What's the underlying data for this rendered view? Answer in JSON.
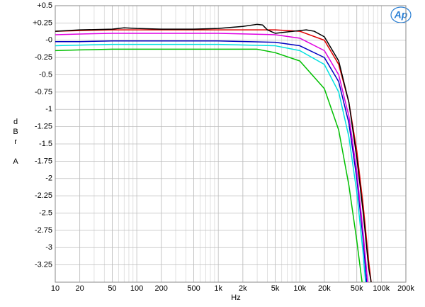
{
  "chart_data": {
    "type": "line",
    "xlabel": "Hz",
    "ylabel_lines": [
      "dBr",
      "A"
    ],
    "logo": "Ap",
    "xscale": "log",
    "grid": true,
    "minor_grid": true,
    "xlim": [
      10,
      200000
    ],
    "ylim": [
      -3.5,
      0.5
    ],
    "xticks": [
      10,
      20,
      50,
      100,
      200,
      500,
      {
        "value": 1000,
        "label": "1k"
      },
      {
        "value": 2000,
        "label": "2k"
      },
      {
        "value": 5000,
        "label": "5k"
      },
      {
        "value": 10000,
        "label": "10k"
      },
      {
        "value": 20000,
        "label": "20k"
      },
      {
        "value": 50000,
        "label": "50k"
      },
      {
        "value": 100000,
        "label": "100k"
      },
      {
        "value": 200000,
        "label": "200k"
      }
    ],
    "yticks": [
      {
        "value": 0.5,
        "label": "+0.5"
      },
      {
        "value": 0.25,
        "label": "+0.25"
      },
      {
        "value": 0,
        "label": "-0"
      },
      -0.25,
      -0.5,
      -0.75,
      -1,
      -1.25,
      -1.5,
      -1.75,
      -2,
      -2.25,
      -2.5,
      -2.75,
      -3,
      -3.25
    ],
    "series": [
      {
        "color": "#00c000",
        "x": [
          10,
          20,
          50,
          100,
          1000,
          3000,
          5000,
          10000,
          20000,
          30000,
          40000,
          50000,
          58000
        ],
        "values": [
          -0.15,
          -0.14,
          -0.13,
          -0.13,
          -0.13,
          -0.13,
          -0.18,
          -0.3,
          -0.7,
          -1.3,
          -2.1,
          -2.9,
          -3.5
        ]
      },
      {
        "color": "#00e0e0",
        "x": [
          10,
          20,
          50,
          100,
          1000,
          5000,
          10000,
          20000,
          30000,
          40000,
          50000,
          60000,
          64000
        ],
        "values": [
          -0.08,
          -0.07,
          -0.06,
          -0.06,
          -0.06,
          -0.08,
          -0.15,
          -0.35,
          -0.75,
          -1.4,
          -2.2,
          -3.1,
          -3.5
        ]
      },
      {
        "color": "#0000c0",
        "x": [
          10,
          20,
          50,
          100,
          1000,
          5000,
          10000,
          20000,
          30000,
          40000,
          50000,
          60000,
          66000
        ],
        "values": [
          -0.02,
          -0.02,
          -0.01,
          -0.01,
          -0.01,
          -0.03,
          -0.08,
          -0.25,
          -0.6,
          -1.2,
          -2.0,
          -2.9,
          -3.5
        ]
      },
      {
        "color": "#e000e0",
        "x": [
          10,
          20,
          50,
          100,
          1000,
          5000,
          10000,
          20000,
          30000,
          40000,
          50000,
          60000,
          68000
        ],
        "values": [
          0.08,
          0.09,
          0.1,
          0.1,
          0.1,
          0.08,
          0.03,
          -0.15,
          -0.5,
          -1.1,
          -1.9,
          -2.8,
          -3.5
        ]
      },
      {
        "color": "#e00000",
        "x": [
          10,
          20,
          50,
          100,
          1000,
          5000,
          10000,
          20000,
          30000,
          40000,
          50000,
          60000,
          70000,
          75000
        ],
        "values": [
          0.13,
          0.14,
          0.15,
          0.15,
          0.15,
          0.15,
          0.13,
          0.0,
          -0.35,
          -0.9,
          -1.6,
          -2.4,
          -3.2,
          -3.5
        ]
      },
      {
        "color": "#000000",
        "x": [
          10,
          20,
          50,
          70,
          100,
          200,
          500,
          1000,
          2000,
          3000,
          3500,
          4000,
          5000,
          7000,
          10000,
          12000,
          15000,
          20000,
          30000,
          40000,
          50000,
          60000,
          70000,
          75000
        ],
        "values": [
          0.13,
          0.15,
          0.16,
          0.18,
          0.17,
          0.16,
          0.16,
          0.17,
          0.2,
          0.23,
          0.22,
          0.15,
          0.1,
          0.12,
          0.14,
          0.15,
          0.13,
          0.05,
          -0.3,
          -0.9,
          -1.7,
          -2.5,
          -3.3,
          -3.5
        ]
      }
    ]
  }
}
